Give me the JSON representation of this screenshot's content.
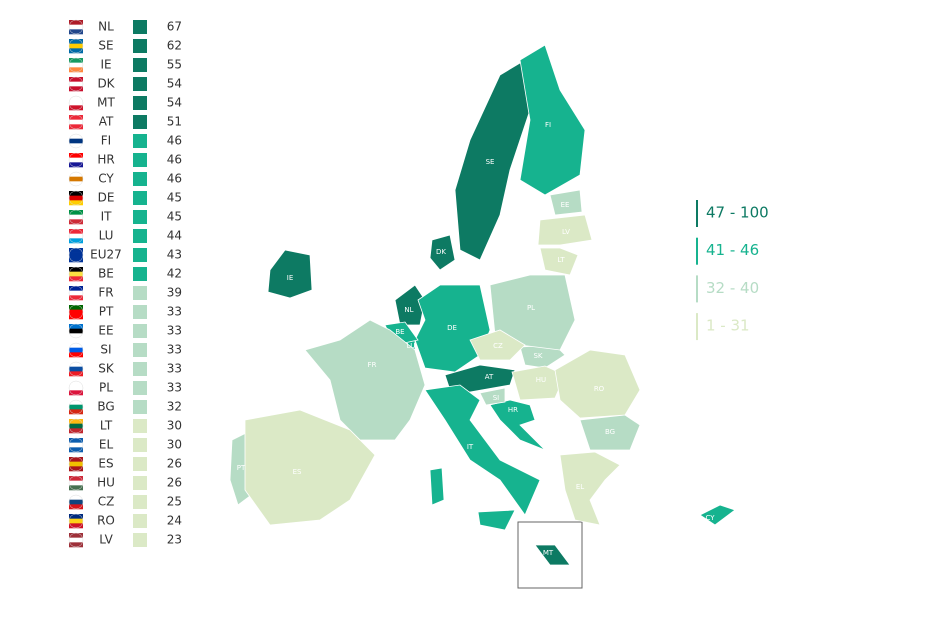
{
  "countries": [
    {
      "code": "NL",
      "value": 67,
      "color": "#0d7a63"
    },
    {
      "code": "SE",
      "value": 62,
      "color": "#0d7a63"
    },
    {
      "code": "IE",
      "value": 55,
      "color": "#0d7a63"
    },
    {
      "code": "DK",
      "value": 54,
      "color": "#0d7a63"
    },
    {
      "code": "MT",
      "value": 54,
      "color": "#0d7a63"
    },
    {
      "code": "AT",
      "value": 51,
      "color": "#0d7a63"
    },
    {
      "code": "FI",
      "value": 46,
      "color": "#16b38f"
    },
    {
      "code": "HR",
      "value": 46,
      "color": "#16b38f"
    },
    {
      "code": "CY",
      "value": 46,
      "color": "#16b38f"
    },
    {
      "code": "DE",
      "value": 45,
      "color": "#16b38f"
    },
    {
      "code": "IT",
      "value": 45,
      "color": "#16b38f"
    },
    {
      "code": "LU",
      "value": 44,
      "color": "#16b38f"
    },
    {
      "code": "EU27",
      "value": 43,
      "color": "#16b38f"
    },
    {
      "code": "BE",
      "value": 42,
      "color": "#16b38f"
    },
    {
      "code": "FR",
      "value": 39,
      "color": "#b6dcc5"
    },
    {
      "code": "PT",
      "value": 33,
      "color": "#b6dcc5"
    },
    {
      "code": "EE",
      "value": 33,
      "color": "#b6dcc5"
    },
    {
      "code": "SI",
      "value": 33,
      "color": "#b6dcc5"
    },
    {
      "code": "SK",
      "value": 33,
      "color": "#b6dcc5"
    },
    {
      "code": "PL",
      "value": 33,
      "color": "#b6dcc5"
    },
    {
      "code": "BG",
      "value": 32,
      "color": "#b6dcc5"
    },
    {
      "code": "LT",
      "value": 30,
      "color": "#dbe9c6"
    },
    {
      "code": "EL",
      "value": 30,
      "color": "#dbe9c6"
    },
    {
      "code": "ES",
      "value": 26,
      "color": "#dbe9c6"
    },
    {
      "code": "HU",
      "value": 26,
      "color": "#dbe9c6"
    },
    {
      "code": "CZ",
      "value": 25,
      "color": "#dbe9c6"
    },
    {
      "code": "RO",
      "value": 24,
      "color": "#dbe9c6"
    },
    {
      "code": "LV",
      "value": 23,
      "color": "#dbe9c6"
    }
  ],
  "legend": [
    {
      "label": "47 - 100",
      "color": "#0d7a63"
    },
    {
      "label": "41 - 46",
      "color": "#16b38f"
    },
    {
      "label": "32 - 40",
      "color": "#b6dcc5"
    },
    {
      "label": "1 - 31",
      "color": "#dbe9c6"
    }
  ]
}
